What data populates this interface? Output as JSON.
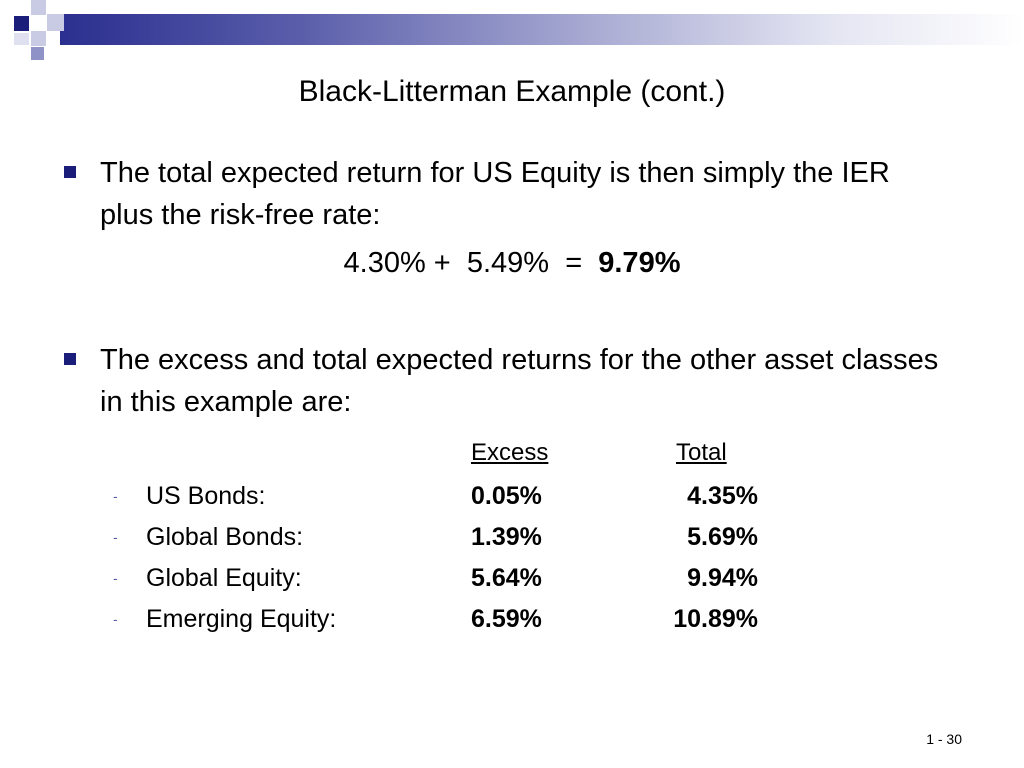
{
  "slide": {
    "title": "Black-Litterman Example (cont.)",
    "page_number": "1 - 30"
  },
  "bullets": [
    {
      "text": "The total expected return for US Equity is then simply the IER plus the risk-free rate:"
    },
    {
      "text": "The excess and total expected returns for the other asset classes in this example are:"
    }
  ],
  "equation": {
    "lhs": "4.30% +  5.49%  =  ",
    "result": "9.79%"
  },
  "table": {
    "headers": {
      "excess": "Excess",
      "total": "Total"
    },
    "rows": [
      {
        "label": "US Bonds:",
        "excess": "0.05%",
        "total": "4.35%"
      },
      {
        "label": "Global Bonds:",
        "excess": "1.39%",
        "total": "5.69%"
      },
      {
        "label": "Global Equity:",
        "excess": "5.64%",
        "total": "9.94%"
      },
      {
        "label": "Emerging Equity:",
        "excess": "6.59%",
        "total": "10.89%"
      }
    ],
    "row_marker": "-"
  },
  "colors": {
    "accent": "#1a1d7a",
    "header_gradient_start": "#2b2f8f",
    "light_square": "#c9cae3"
  }
}
